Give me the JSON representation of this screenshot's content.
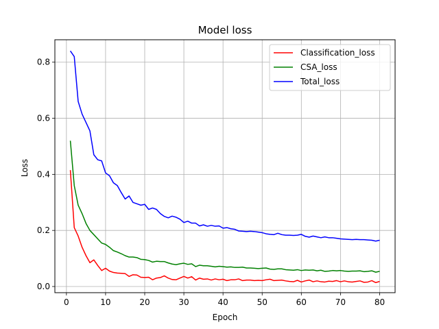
{
  "chart_data": {
    "type": "line",
    "title": "Model loss",
    "xlabel": "Epoch",
    "ylabel": "Loss",
    "xlim": [
      -2.95,
      83.95
    ],
    "ylim": [
      -0.022,
      0.88
    ],
    "xticks": [
      0,
      10,
      20,
      30,
      40,
      50,
      60,
      70,
      80
    ],
    "yticks": [
      0.0,
      0.2,
      0.4,
      0.6,
      0.8
    ],
    "grid": true,
    "legend_position": "top-right",
    "x": [
      1,
      2,
      3,
      4,
      5,
      6,
      7,
      8,
      9,
      10,
      11,
      12,
      13,
      14,
      15,
      16,
      17,
      18,
      19,
      20,
      21,
      22,
      23,
      24,
      25,
      26,
      27,
      28,
      29,
      30,
      31,
      32,
      33,
      34,
      35,
      36,
      37,
      38,
      39,
      40,
      41,
      42,
      43,
      44,
      45,
      46,
      47,
      48,
      49,
      50,
      51,
      52,
      53,
      54,
      55,
      56,
      57,
      58,
      59,
      60,
      61,
      62,
      63,
      64,
      65,
      66,
      67,
      68,
      69,
      70,
      71,
      72,
      73,
      74,
      75,
      76,
      77,
      78,
      79,
      80
    ],
    "series": [
      {
        "name": "Classification_loss",
        "color": "#ff0000",
        "values": [
          0.415,
          0.21,
          0.18,
          0.14,
          0.11,
          0.085,
          0.095,
          0.075,
          0.057,
          0.065,
          0.055,
          0.05,
          0.048,
          0.047,
          0.046,
          0.036,
          0.042,
          0.041,
          0.033,
          0.032,
          0.033,
          0.024,
          0.03,
          0.032,
          0.038,
          0.03,
          0.025,
          0.024,
          0.03,
          0.036,
          0.03,
          0.035,
          0.023,
          0.03,
          0.026,
          0.027,
          0.023,
          0.027,
          0.024,
          0.026,
          0.021,
          0.024,
          0.024,
          0.027,
          0.021,
          0.023,
          0.023,
          0.021,
          0.022,
          0.021,
          0.024,
          0.026,
          0.021,
          0.022,
          0.023,
          0.02,
          0.018,
          0.017,
          0.022,
          0.016,
          0.02,
          0.023,
          0.017,
          0.02,
          0.017,
          0.016,
          0.019,
          0.018,
          0.021,
          0.017,
          0.02,
          0.017,
          0.016,
          0.018,
          0.02,
          0.015,
          0.016,
          0.021,
          0.014,
          0.018
        ]
      },
      {
        "name": "CSA_loss",
        "color": "#008000",
        "values": [
          0.52,
          0.36,
          0.29,
          0.26,
          0.225,
          0.2,
          0.185,
          0.17,
          0.155,
          0.15,
          0.14,
          0.128,
          0.123,
          0.117,
          0.11,
          0.105,
          0.105,
          0.103,
          0.097,
          0.096,
          0.093,
          0.087,
          0.09,
          0.089,
          0.089,
          0.084,
          0.08,
          0.078,
          0.081,
          0.083,
          0.079,
          0.081,
          0.071,
          0.076,
          0.074,
          0.074,
          0.072,
          0.07,
          0.072,
          0.071,
          0.069,
          0.07,
          0.068,
          0.068,
          0.069,
          0.066,
          0.066,
          0.065,
          0.064,
          0.065,
          0.066,
          0.062,
          0.061,
          0.063,
          0.063,
          0.06,
          0.059,
          0.058,
          0.06,
          0.057,
          0.059,
          0.058,
          0.059,
          0.056,
          0.058,
          0.054,
          0.055,
          0.057,
          0.056,
          0.057,
          0.055,
          0.054,
          0.055,
          0.055,
          0.056,
          0.053,
          0.054,
          0.056,
          0.051,
          0.054
        ]
      },
      {
        "name": "Total_loss",
        "color": "#0000ff",
        "values": [
          0.84,
          0.82,
          0.66,
          0.615,
          0.585,
          0.555,
          0.47,
          0.452,
          0.448,
          0.405,
          0.395,
          0.37,
          0.36,
          0.335,
          0.312,
          0.323,
          0.3,
          0.295,
          0.29,
          0.293,
          0.275,
          0.28,
          0.275,
          0.26,
          0.25,
          0.245,
          0.251,
          0.247,
          0.24,
          0.228,
          0.233,
          0.226,
          0.226,
          0.216,
          0.22,
          0.215,
          0.218,
          0.215,
          0.216,
          0.208,
          0.21,
          0.206,
          0.204,
          0.198,
          0.197,
          0.196,
          0.197,
          0.196,
          0.194,
          0.192,
          0.188,
          0.186,
          0.185,
          0.19,
          0.185,
          0.183,
          0.183,
          0.182,
          0.183,
          0.186,
          0.179,
          0.176,
          0.18,
          0.177,
          0.174,
          0.177,
          0.174,
          0.174,
          0.172,
          0.17,
          0.169,
          0.168,
          0.167,
          0.168,
          0.167,
          0.167,
          0.166,
          0.165,
          0.162,
          0.165
        ]
      }
    ]
  }
}
